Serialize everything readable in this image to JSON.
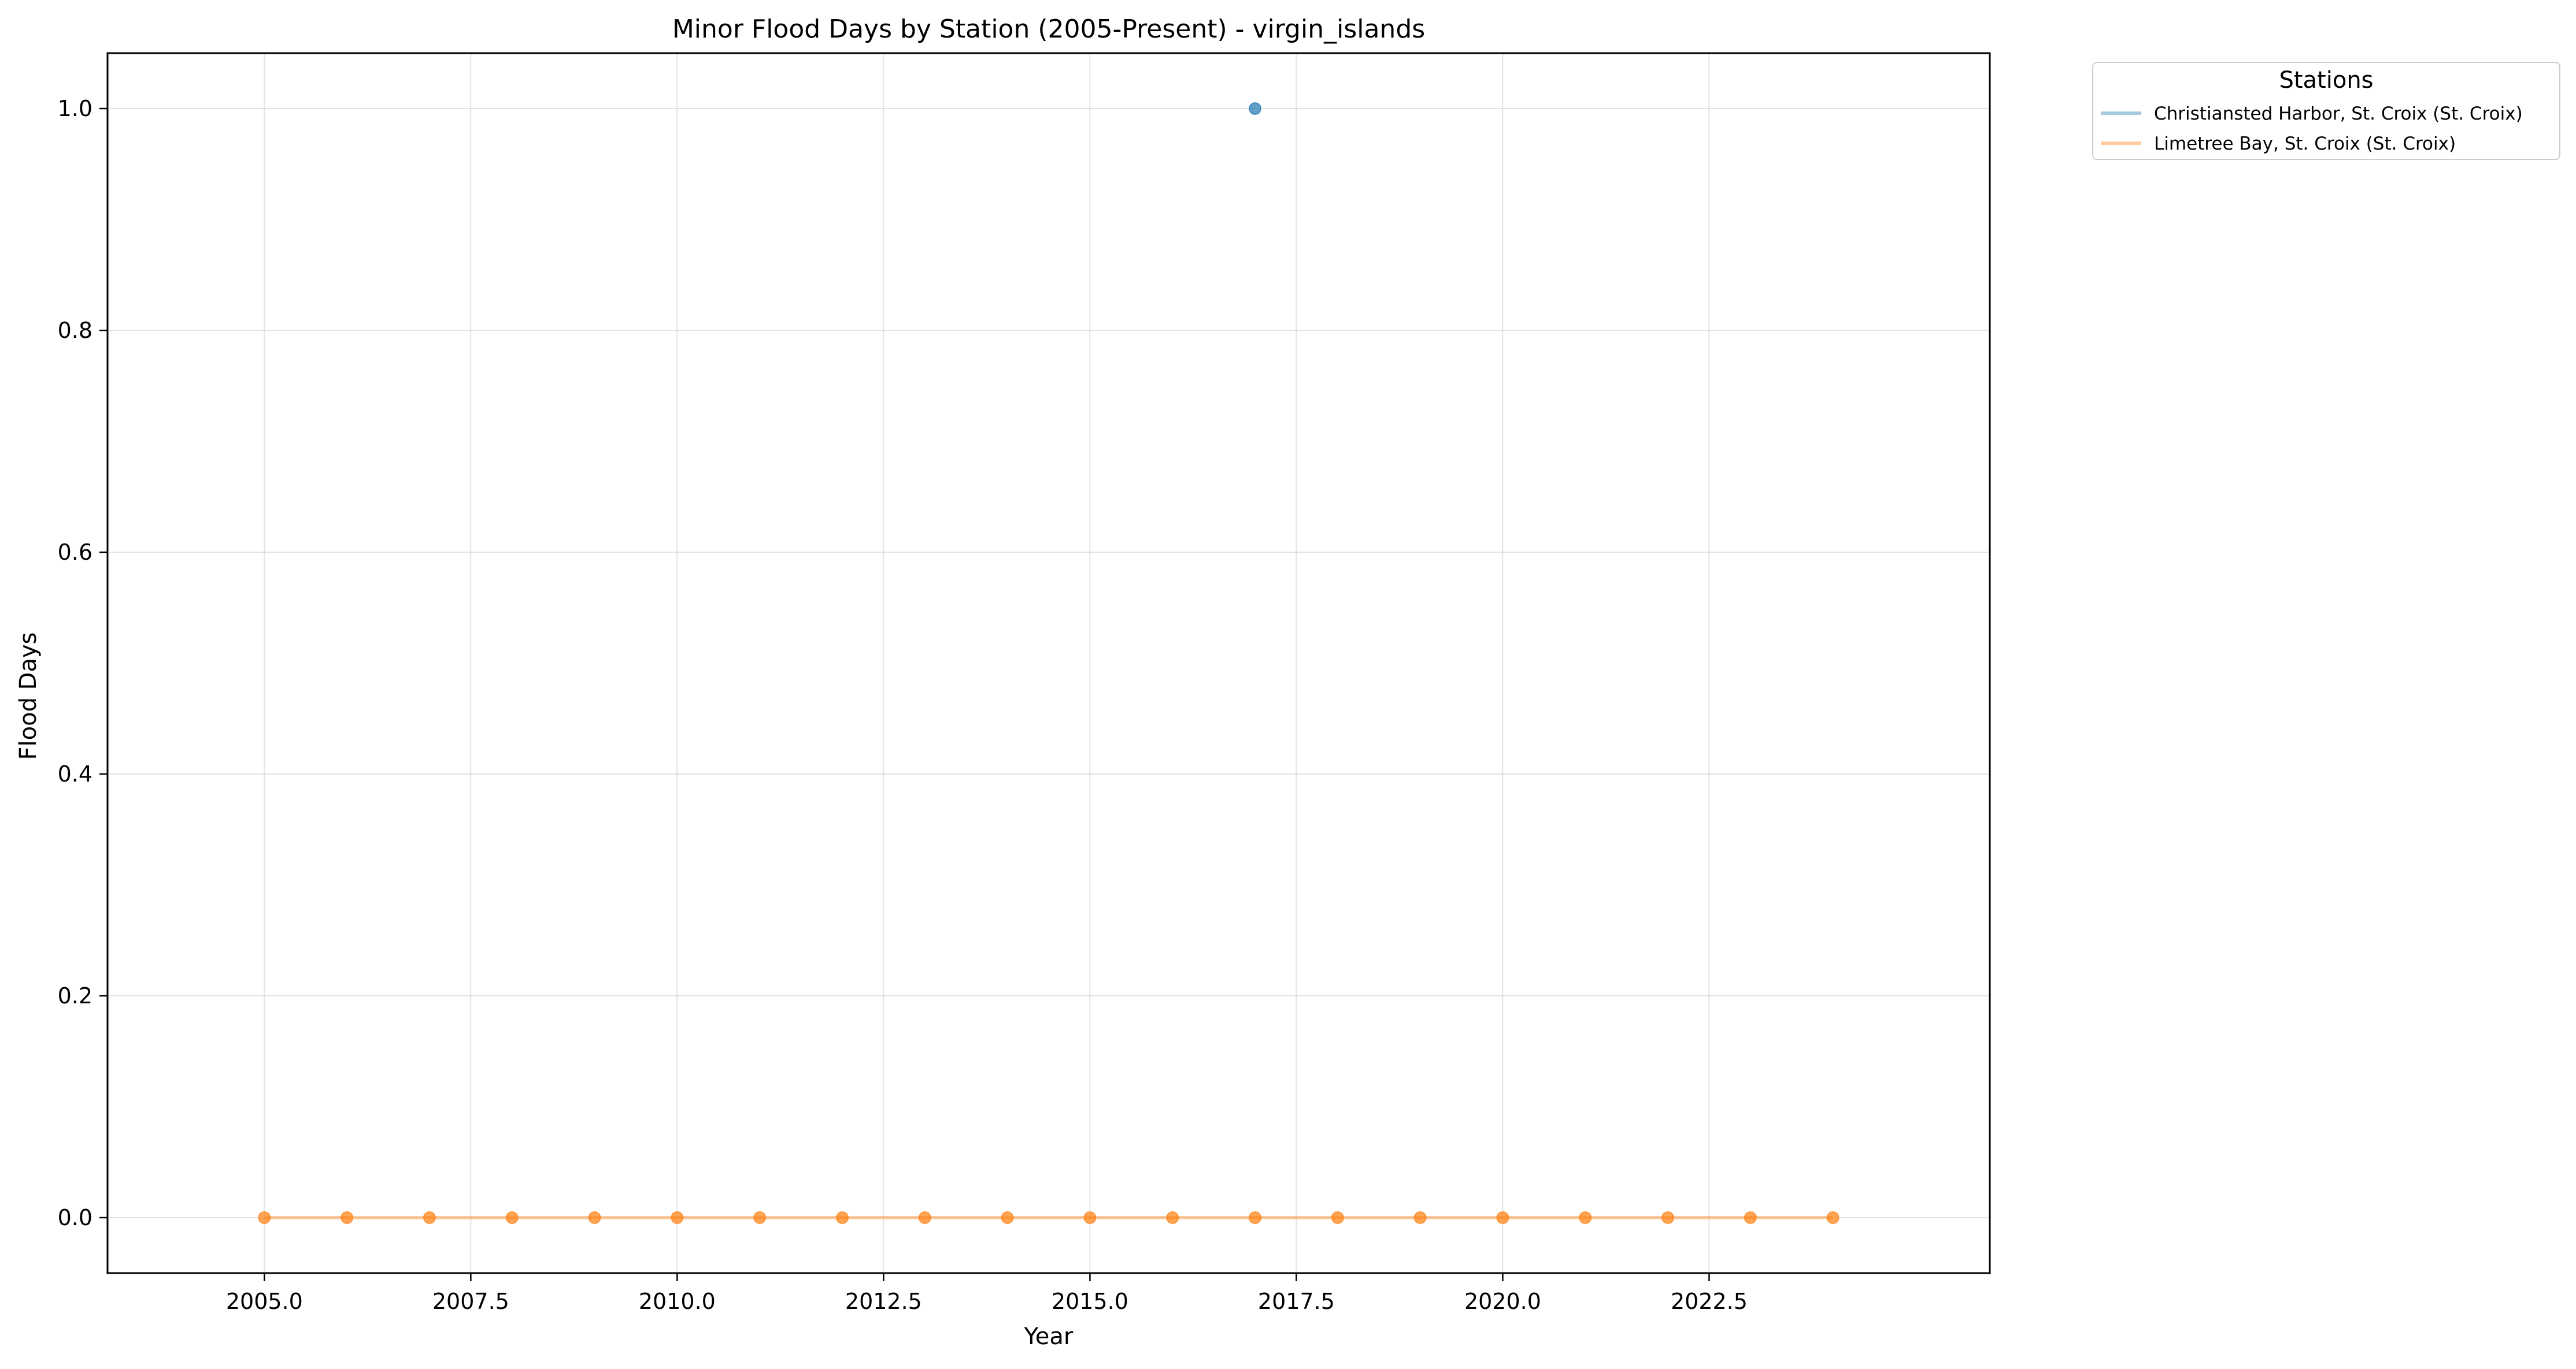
{
  "chart_data": {
    "type": "line",
    "title": "Minor Flood Days by Station (2005-Present) - virgin_islands",
    "xlabel": "Year",
    "ylabel": "Flood Days",
    "xlim": [
      2003.1,
      2025.9
    ],
    "ylim": [
      -0.05,
      1.05
    ],
    "x_ticks": [
      "2005.0",
      "2007.5",
      "2010.0",
      "2012.5",
      "2015.0",
      "2017.5",
      "2020.0",
      "2022.5"
    ],
    "y_ticks": [
      "0.0",
      "0.2",
      "0.4",
      "0.6",
      "0.8",
      "1.0"
    ],
    "grid": true,
    "legend": {
      "title": "Stations",
      "placement": "outside top-right"
    },
    "x": [
      2005,
      2006,
      2007,
      2008,
      2009,
      2010,
      2011,
      2012,
      2013,
      2014,
      2015,
      2016,
      2017,
      2018,
      2019,
      2020,
      2021,
      2022,
      2023,
      2024
    ],
    "series": [
      {
        "name": "Christiansted Harbor, St. Croix (St. Croix)",
        "color": "#1f77b4",
        "x": [
          2017
        ],
        "values": [
          1
        ]
      },
      {
        "name": "Limetree Bay, St. Croix (St. Croix)",
        "color": "#ff7f0e",
        "x": [
          2005,
          2006,
          2007,
          2008,
          2009,
          2010,
          2011,
          2012,
          2013,
          2014,
          2015,
          2016,
          2017,
          2018,
          2019,
          2020,
          2021,
          2022,
          2023,
          2024
        ],
        "values": [
          0,
          0,
          0,
          0,
          0,
          0,
          0,
          0,
          0,
          0,
          0,
          0,
          0,
          0,
          0,
          0,
          0,
          0,
          0,
          0
        ]
      }
    ]
  }
}
